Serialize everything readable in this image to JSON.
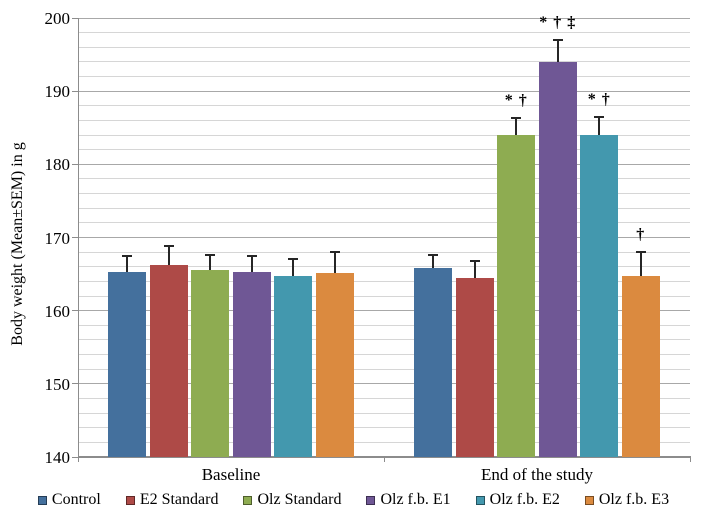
{
  "chart_data": {
    "type": "bar",
    "title": "",
    "xlabel": "",
    "ylabel": "Body weight (Mean±SEM) in g",
    "ylim": [
      140,
      200
    ],
    "y_major_step": 10,
    "y_minor_step": 2,
    "grid": true,
    "legend_position": "bottom",
    "categories": [
      "Baseline",
      "End of the study"
    ],
    "series": [
      {
        "name": "Control",
        "color": "#44709D",
        "values": [
          165.3,
          165.8
        ],
        "errors_up": [
          2.2,
          1.8
        ],
        "annotations": [
          "",
          ""
        ]
      },
      {
        "name": "E2 Standard",
        "color": "#AE4A47",
        "values": [
          166.3,
          164.5
        ],
        "errors_up": [
          2.5,
          2.3
        ],
        "annotations": [
          "",
          ""
        ]
      },
      {
        "name": "Olz Standard",
        "color": "#8EAC51",
        "values": [
          165.6,
          184.0
        ],
        "errors_up": [
          2.0,
          2.4
        ],
        "annotations": [
          "",
          "* †"
        ]
      },
      {
        "name": "Olz f.b. E1",
        "color": "#6F5795",
        "values": [
          165.3,
          194.0
        ],
        "errors_up": [
          2.2,
          3.0
        ],
        "annotations": [
          "",
          "* † ‡"
        ]
      },
      {
        "name": "Olz f.b. E2",
        "color": "#4398AE",
        "values": [
          164.7,
          184.0
        ],
        "errors_up": [
          2.4,
          2.5
        ],
        "annotations": [
          "",
          "* †"
        ]
      },
      {
        "name": "Olz f.b. E3",
        "color": "#DB8A3F",
        "values": [
          165.2,
          164.7
        ],
        "errors_up": [
          2.8,
          3.3
        ],
        "annotations": [
          "",
          "†"
        ]
      }
    ],
    "y_tick_labels": [
      "140",
      "150",
      "160",
      "170",
      "180",
      "190",
      "200"
    ]
  },
  "colors": {
    "gridline_minor": "#d6d6d6",
    "gridline_major": "#a8a8a8",
    "axis": "#8c8c8c",
    "error_bar": "#262626",
    "background": "#ffffff"
  }
}
